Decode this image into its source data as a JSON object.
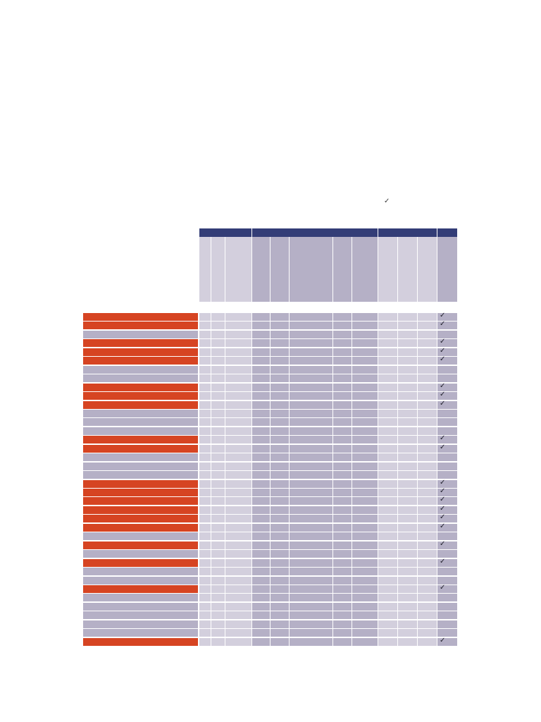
{
  "legend": {
    "check_symbol": "✓"
  },
  "colors": {
    "header_dark": "#333d77",
    "cell_light": "#d3cfdd",
    "cell_mid": "#b5b0c6",
    "row_orange": "#d64422",
    "row_gray": "#b5b0c6"
  },
  "header_groups": [
    {
      "span": [
        0,
        2
      ]
    },
    {
      "span": [
        3,
        7
      ]
    },
    {
      "span": [
        8,
        10
      ]
    },
    {
      "span": [
        11,
        11
      ]
    }
  ],
  "column_shades": [
    "light",
    "light",
    "light",
    "mid",
    "mid",
    "mid",
    "mid",
    "mid",
    "light",
    "light",
    "light",
    "mid"
  ],
  "rows": [
    {
      "highlight": true,
      "checked": true
    },
    {
      "highlight": true,
      "checked": true
    },
    {
      "highlight": false,
      "checked": false
    },
    {
      "highlight": true,
      "checked": true
    },
    {
      "highlight": true,
      "checked": true
    },
    {
      "highlight": true,
      "checked": true
    },
    {
      "highlight": false,
      "checked": false
    },
    {
      "highlight": false,
      "checked": false
    },
    {
      "highlight": true,
      "checked": true
    },
    {
      "highlight": true,
      "checked": true
    },
    {
      "highlight": true,
      "checked": true
    },
    {
      "highlight": false,
      "checked": false
    },
    {
      "highlight": false,
      "checked": false
    },
    {
      "highlight": false,
      "checked": false
    },
    {
      "highlight": true,
      "checked": true
    },
    {
      "highlight": true,
      "checked": true
    },
    {
      "highlight": false,
      "checked": false
    },
    {
      "highlight": false,
      "checked": false
    },
    {
      "highlight": false,
      "checked": false
    },
    {
      "highlight": true,
      "checked": true
    },
    {
      "highlight": true,
      "checked": true
    },
    {
      "highlight": true,
      "checked": true
    },
    {
      "highlight": true,
      "checked": true
    },
    {
      "highlight": true,
      "checked": true
    },
    {
      "highlight": true,
      "checked": true
    },
    {
      "highlight": false,
      "checked": false
    },
    {
      "highlight": true,
      "checked": true
    },
    {
      "highlight": false,
      "checked": false
    },
    {
      "highlight": true,
      "checked": true
    },
    {
      "highlight": false,
      "checked": false
    },
    {
      "highlight": false,
      "checked": false
    },
    {
      "highlight": true,
      "checked": true
    },
    {
      "highlight": false,
      "checked": false
    },
    {
      "highlight": false,
      "checked": false
    },
    {
      "highlight": false,
      "checked": false
    },
    {
      "highlight": false,
      "checked": false
    },
    {
      "highlight": false,
      "checked": false
    },
    {
      "highlight": true,
      "checked": true
    }
  ]
}
